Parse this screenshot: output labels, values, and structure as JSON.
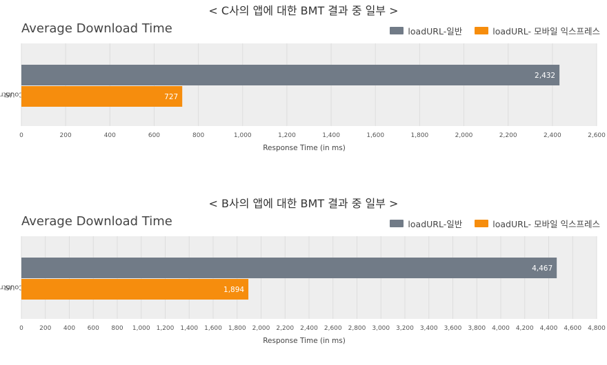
{
  "panels": [
    {
      "heading": "< C사의 앱에 대한 BMT 결과 중 일부 >",
      "chart_title": "Average Download Time",
      "legend": [
        "loadURL-일반",
        "loadURL- 모바일 익스프레스"
      ],
      "ylabel_lines": [
        "Country",
        "US"
      ]
    },
    {
      "heading": "< B사의 앱에 대한 BMT 결과 중 일부 >",
      "chart_title": "Average Download Time",
      "legend": [
        "loadURL-일반",
        "loadURL- 모바일 익스프레스"
      ],
      "ylabel_lines": [
        "Country",
        "US"
      ]
    }
  ],
  "colors": {
    "general": "#717b87",
    "express": "#f68d0d",
    "plot_bg": "#eeeeee",
    "grid": "#dddddd"
  },
  "chart_data": [
    {
      "type": "bar",
      "orientation": "horizontal",
      "title": "Average Download Time",
      "xlabel": "Response Time (in ms)",
      "ylabel": "Country",
      "categories": [
        "US"
      ],
      "series": [
        {
          "name": "loadURL-일반",
          "values": [
            2432
          ],
          "labels": [
            "2,432"
          ],
          "color": "#717b87"
        },
        {
          "name": "loadURL- 모바일 익스프레스",
          "values": [
            727
          ],
          "labels": [
            "727"
          ],
          "color": "#f68d0d"
        }
      ],
      "xlim": [
        0,
        2600
      ],
      "xticks": [
        "0",
        "200",
        "400",
        "600",
        "800",
        "1,000",
        "1,200",
        "1,400",
        "1,600",
        "1,800",
        "2,000",
        "2,200",
        "2,400",
        "2,600"
      ],
      "xtick_step": 200,
      "grid": true,
      "legend_position": "top-right"
    },
    {
      "type": "bar",
      "orientation": "horizontal",
      "title": "Average Download Time",
      "xlabel": "Response Time (in ms)",
      "ylabel": "Country",
      "categories": [
        "US"
      ],
      "series": [
        {
          "name": "loadURL-일반",
          "values": [
            4467
          ],
          "labels": [
            "4,467"
          ],
          "color": "#717b87"
        },
        {
          "name": "loadURL- 모바일 익스프레스",
          "values": [
            1894
          ],
          "labels": [
            "1,894"
          ],
          "color": "#f68d0d"
        }
      ],
      "xlim": [
        0,
        4800
      ],
      "xticks": [
        "0",
        "200",
        "400",
        "600",
        "800",
        "1,000",
        "1,200",
        "1,400",
        "1,600",
        "1,800",
        "2,000",
        "2,200",
        "2,400",
        "2,600",
        "2,800",
        "3,000",
        "3,200",
        "3,400",
        "3,600",
        "3,800",
        "4,000",
        "4,200",
        "4,400",
        "4,600",
        "4,800"
      ],
      "xtick_step": 200,
      "grid": true,
      "legend_position": "top-right"
    }
  ]
}
